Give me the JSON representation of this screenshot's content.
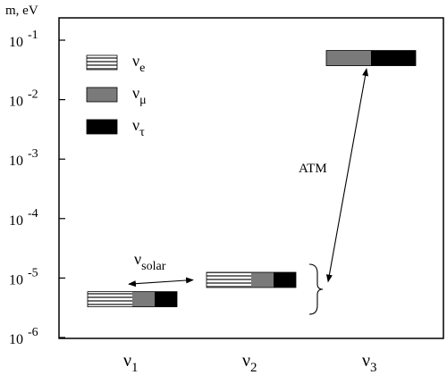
{
  "chart_data": {
    "type": "bar",
    "title": "",
    "ylabel": "m, eV",
    "yscale": "log",
    "ylim": [
      1e-06,
      0.15
    ],
    "y_ticks": [
      {
        "value": 1e-06,
        "base": "10",
        "exp": "-6"
      },
      {
        "value": 1e-05,
        "base": "10",
        "exp": "-5"
      },
      {
        "value": 0.0001,
        "base": "10",
        "exp": "-4"
      },
      {
        "value": 0.001,
        "base": "10",
        "exp": "-3"
      },
      {
        "value": 0.01,
        "base": "10",
        "exp": "-2"
      },
      {
        "value": 0.1,
        "base": "10",
        "exp": "-1"
      }
    ],
    "categories": [
      {
        "base": "ν",
        "sub": "1"
      },
      {
        "base": "ν",
        "sub": "2"
      },
      {
        "base": "ν",
        "sub": "3"
      }
    ],
    "mass_eV": [
      4.4e-06,
      9.3e-06,
      0.05
    ],
    "flavor_fractions": [
      {
        "nu_e": 0.5,
        "nu_mu": 0.25,
        "nu_tau": 0.25
      },
      {
        "nu_e": 0.5,
        "nu_mu": 0.25,
        "nu_tau": 0.25
      },
      {
        "nu_e": 0.0,
        "nu_mu": 0.5,
        "nu_tau": 0.5
      }
    ],
    "legend": [
      {
        "key": "nu_e",
        "base": "ν",
        "sub": "e",
        "fill": "stripes"
      },
      {
        "key": "nu_mu",
        "base": "ν",
        "sub": "μ",
        "fill": "#7a7a7a"
      },
      {
        "key": "nu_tau",
        "base": "ν",
        "sub": "τ",
        "fill": "#000000"
      }
    ],
    "legend_position": "top-left",
    "annotations": {
      "solar": {
        "base": "ν",
        "sub": "solar"
      },
      "atm": "ATM"
    },
    "grid": false
  }
}
